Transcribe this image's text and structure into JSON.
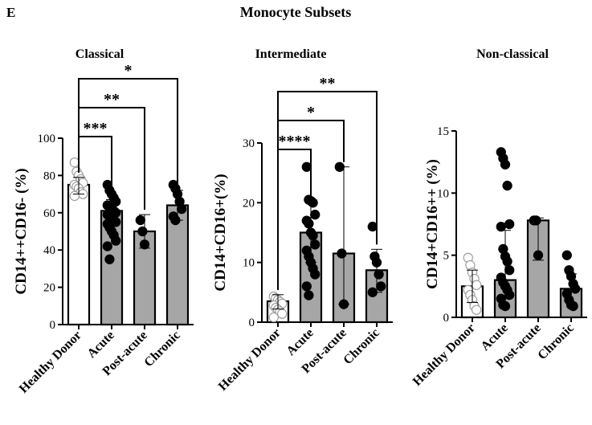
{
  "figure": {
    "panel_letter": "E",
    "title": "Monocyte Subsets",
    "colors": {
      "hollow": "#ffffff",
      "filled": "#a6a6a6",
      "dot": "#000000"
    }
  },
  "chart_data": [
    {
      "type": "bar",
      "title": "Classical",
      "ylabel": "CD14++CD16- (%)",
      "ylim": [
        0,
        100
      ],
      "yticks": [
        "0",
        "20",
        "40",
        "60",
        "80",
        "100"
      ],
      "categories": [
        "Healthy Donor",
        "Acute",
        "Post-acute",
        "Chronic"
      ],
      "values": [
        75,
        61,
        50,
        64
      ],
      "error_lower": [
        70,
        55,
        41,
        56
      ],
      "error_upper": [
        79,
        67,
        59,
        72
      ],
      "points": [
        [
          87,
          82,
          80,
          78,
          76,
          75,
          74,
          73,
          71,
          70,
          69
        ],
        [
          75,
          72,
          70,
          68,
          66,
          64,
          63,
          62,
          61,
          60,
          59,
          58,
          57,
          56,
          55,
          54,
          52,
          50,
          48,
          45,
          42,
          35
        ],
        [
          56,
          50,
          43
        ],
        [
          75,
          73,
          70,
          66,
          62,
          58,
          56
        ]
      ],
      "significance": [
        {
          "from": 0,
          "to": 1,
          "label": "***"
        },
        {
          "from": 0,
          "to": 2,
          "label": "**"
        },
        {
          "from": 0,
          "to": 3,
          "label": "*"
        }
      ]
    },
    {
      "type": "bar",
      "title": "Intermediate",
      "ylabel": "CD14+CD16+(%)",
      "ylim": [
        0,
        30
      ],
      "yticks": [
        "0",
        "10",
        "20",
        "30"
      ],
      "categories": [
        "Healthy Donor",
        "Acute",
        "Post-acute",
        "Chronic"
      ],
      "values": [
        3.5,
        15,
        11.5,
        8.7
      ],
      "error_lower": [
        2.2,
        10,
        3,
        5
      ],
      "error_upper": [
        4.6,
        20,
        26,
        12.2
      ],
      "points": [
        [
          4.3,
          4,
          3.7,
          3.4,
          3.1,
          2.8,
          2.4,
          2.1,
          1.8,
          1.4,
          0.8
        ],
        [
          26,
          20.5,
          20.3,
          20,
          18,
          17,
          16.5,
          15,
          14.5,
          13,
          12,
          11,
          10,
          9,
          8,
          6,
          4.5
        ],
        [
          26,
          11.5,
          3
        ],
        [
          16,
          11,
          10,
          8,
          6,
          5
        ]
      ],
      "significance": [
        {
          "from": 0,
          "to": 1,
          "label": "****"
        },
        {
          "from": 0,
          "to": 2,
          "label": "*"
        },
        {
          "from": 0,
          "to": 3,
          "label": "**"
        }
      ]
    },
    {
      "type": "bar",
      "title": "Non-classical",
      "ylabel": "CD14+CD16++ (%)",
      "ylim": [
        0,
        15
      ],
      "yticks": [
        "0",
        "5",
        "10",
        "15"
      ],
      "categories": [
        "Healthy Donor",
        "Acute",
        "Post-acute",
        "Chronic"
      ],
      "values": [
        2.5,
        3,
        7.8,
        2.3
      ],
      "error_lower": [
        1.2,
        1.5,
        4.6,
        1.2
      ],
      "error_upper": [
        3.8,
        7,
        8,
        3.5
      ],
      "points": [
        [
          4.8,
          4.2,
          3.6,
          3.1,
          2.6,
          2.2,
          1.8,
          1.4,
          0.9,
          0.6
        ],
        [
          13.3,
          12.8,
          12.3,
          10.6,
          7.5,
          7.3,
          5.5,
          4.9,
          4.5,
          3.8,
          3.2,
          2.8,
          2.5,
          2.2,
          1.8,
          1.5,
          1,
          0.9
        ],
        [
          7.8,
          7.8,
          5
        ],
        [
          5,
          3.8,
          3.3,
          2.7,
          2.3,
          1.9,
          1.4,
          1,
          0.9
        ]
      ],
      "significance": []
    }
  ]
}
